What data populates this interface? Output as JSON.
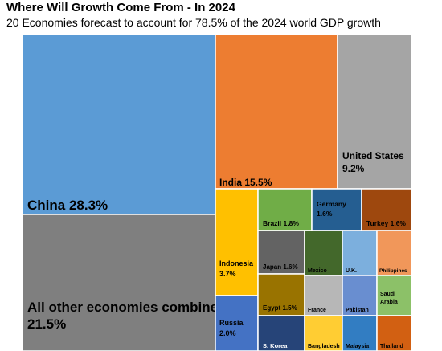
{
  "title": "Where Will Growth Come From - In 2024",
  "subtitle": "20 Economies forecast to account for 78.5% of the 2024 world GDP growth",
  "chart_data": {
    "type": "treemap",
    "unit": "% of world GDP growth",
    "items": [
      {
        "label": "China",
        "value": 28.3,
        "text": "China 28.3%",
        "color": "#5b9bd5",
        "text_color": "#000000"
      },
      {
        "label": "All other economies combined",
        "value": 21.5,
        "text": [
          "All other economies combined",
          "21.5%"
        ],
        "color": "#7f7f7f",
        "text_color": "#000000"
      },
      {
        "label": "India",
        "value": 15.5,
        "text": "India 15.5%",
        "color": "#ed7d31",
        "text_color": "#000000"
      },
      {
        "label": "United States",
        "value": 9.2,
        "text": [
          "United States",
          "9.2%"
        ],
        "color": "#a5a5a5",
        "text_color": "#000000"
      },
      {
        "label": "Indonesia",
        "value": 3.7,
        "text": [
          "Indonesia",
          "3.7%"
        ],
        "color": "#ffc000",
        "text_color": "#000000"
      },
      {
        "label": "Russia",
        "value": 2.0,
        "text": [
          "Russia",
          "2.0%"
        ],
        "color": "#4472c4",
        "text_color": "#000000"
      },
      {
        "label": "Brazil",
        "value": 1.8,
        "text": "Brazil 1.8%",
        "color": "#70ad47",
        "text_color": "#000000"
      },
      {
        "label": "Germany",
        "value": 1.6,
        "text": [
          "Germany",
          "1.6%"
        ],
        "color": "#255e91",
        "text_color": "#000000"
      },
      {
        "label": "Turkey",
        "value": 1.6,
        "text": "Turkey 1.6%",
        "color": "#9e480e",
        "text_color": "#000000"
      },
      {
        "label": "Japan",
        "value": 1.6,
        "text": "Japan 1.6%",
        "color": "#636363",
        "text_color": "#000000"
      },
      {
        "label": "Egypt",
        "value": 1.5,
        "text": "Egypt 1.5%",
        "color": "#997300",
        "text_color": "#000000"
      },
      {
        "label": "S. Korea",
        "value": null,
        "text": "S. Korea",
        "color": "#264478",
        "text_color": "#ffffff"
      },
      {
        "label": "Mexico",
        "value": null,
        "text": "Mexico",
        "color": "#43682b",
        "text_color": "#000000"
      },
      {
        "label": "U.K.",
        "value": null,
        "text": "U.K.",
        "color": "#7cafdd",
        "text_color": "#000000"
      },
      {
        "label": "Philippines",
        "value": null,
        "text": "Philippines",
        "color": "#f1975a",
        "text_color": "#000000"
      },
      {
        "label": "France",
        "value": null,
        "text": "France",
        "color": "#b7b7b7",
        "text_color": "#000000"
      },
      {
        "label": "Pakistan",
        "value": null,
        "text": "Pakistan",
        "color": "#698ed0",
        "text_color": "#000000"
      },
      {
        "label": "Saudi Arabia",
        "value": null,
        "text": [
          "Saudi",
          "Arabia"
        ],
        "color": "#8cc168",
        "text_color": "#000000"
      },
      {
        "label": "Bangladesh",
        "value": null,
        "text": "Bangladesh",
        "color": "#ffcd33",
        "text_color": "#000000"
      },
      {
        "label": "Malaysia",
        "value": null,
        "text": "Malaysia",
        "color": "#327dc2",
        "text_color": "#000000"
      },
      {
        "label": "Thailand",
        "value": null,
        "text": "Thailand",
        "color": "#d26012",
        "text_color": "#000000"
      }
    ]
  }
}
